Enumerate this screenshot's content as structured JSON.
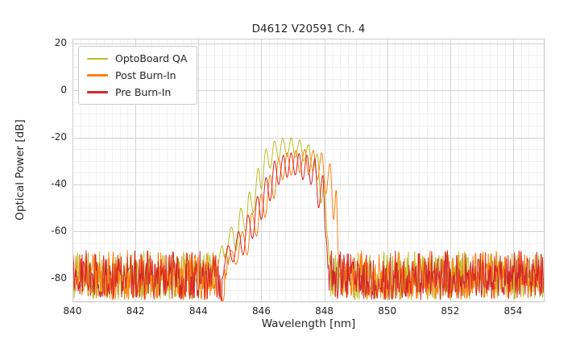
{
  "chart_data": {
    "type": "line",
    "title": "D4612 V20591 Ch. 4",
    "xlabel": "Wavelength [nm]",
    "ylabel": "Optical Power [dB]",
    "xlim": [
      840,
      855
    ],
    "ylim": [
      -90,
      22
    ],
    "xticks": [
      840,
      842,
      844,
      846,
      848,
      850,
      852,
      854
    ],
    "yticks": [
      20,
      0,
      -20,
      -40,
      -60,
      -80
    ],
    "grid": {
      "minor_x_step": 0.25,
      "minor_y_step": 5,
      "minor_color": "#ececec",
      "major_color": "#d2d2d2",
      "box_color": "#cccccc"
    },
    "text_color": "#262626",
    "legend_position": "upper-left",
    "noise_floor": {
      "top_dB": -68,
      "bottom_dB": -89,
      "notch_x": [
        844.7,
        844.82
      ]
    },
    "series": [
      {
        "name": "OptoBoard QA",
        "color": "#bcbd22",
        "envelope": [
          [
            844.55,
            -80
          ],
          [
            844.75,
            -66
          ],
          [
            844.85,
            -72
          ],
          [
            845.05,
            -58
          ],
          [
            845.2,
            -68
          ],
          [
            845.35,
            -50
          ],
          [
            845.5,
            -60
          ],
          [
            845.62,
            -43
          ],
          [
            845.75,
            -52
          ],
          [
            845.9,
            -33
          ],
          [
            846.0,
            -42
          ],
          [
            846.15,
            -25
          ],
          [
            846.28,
            -33
          ],
          [
            846.42,
            -21.5
          ],
          [
            846.55,
            -29
          ],
          [
            846.68,
            -20.3
          ],
          [
            846.82,
            -28
          ],
          [
            846.95,
            -20.2
          ],
          [
            847.08,
            -28.5
          ],
          [
            847.22,
            -21
          ],
          [
            847.35,
            -30
          ],
          [
            847.5,
            -23
          ],
          [
            847.62,
            -34
          ],
          [
            847.78,
            -27
          ],
          [
            847.9,
            -48
          ],
          [
            848.0,
            -38
          ],
          [
            848.1,
            -62
          ],
          [
            848.2,
            -80
          ]
        ]
      },
      {
        "name": "Post Burn-In",
        "color": "#ff7f0e",
        "envelope": [
          [
            844.85,
            -80
          ],
          [
            845.05,
            -68
          ],
          [
            845.2,
            -74
          ],
          [
            845.4,
            -60
          ],
          [
            845.55,
            -70
          ],
          [
            845.7,
            -52
          ],
          [
            845.85,
            -62
          ],
          [
            846.0,
            -44
          ],
          [
            846.12,
            -54
          ],
          [
            846.28,
            -36
          ],
          [
            846.4,
            -46
          ],
          [
            846.55,
            -29
          ],
          [
            846.68,
            -38
          ],
          [
            846.82,
            -26.5
          ],
          [
            846.95,
            -36
          ],
          [
            847.1,
            -25.5
          ],
          [
            847.22,
            -35
          ],
          [
            847.38,
            -25
          ],
          [
            847.5,
            -36
          ],
          [
            847.65,
            -25.5
          ],
          [
            847.78,
            -38
          ],
          [
            847.92,
            -26.5
          ],
          [
            848.05,
            -44
          ],
          [
            848.18,
            -31
          ],
          [
            848.3,
            -55
          ],
          [
            848.38,
            -42
          ],
          [
            848.45,
            -70
          ],
          [
            848.55,
            -82
          ]
        ]
      },
      {
        "name": "Pre Burn-In",
        "color": "#d62728",
        "envelope": [
          [
            844.75,
            -80
          ],
          [
            844.95,
            -66
          ],
          [
            845.1,
            -73
          ],
          [
            845.28,
            -60
          ],
          [
            845.42,
            -70
          ],
          [
            845.58,
            -53
          ],
          [
            845.72,
            -63
          ],
          [
            845.88,
            -45
          ],
          [
            846.0,
            -55
          ],
          [
            846.15,
            -37
          ],
          [
            846.28,
            -47
          ],
          [
            846.42,
            -30
          ],
          [
            846.55,
            -40
          ],
          [
            846.7,
            -27.5
          ],
          [
            846.82,
            -37
          ],
          [
            846.95,
            -26.5
          ],
          [
            847.08,
            -36
          ],
          [
            847.2,
            -26.8
          ],
          [
            847.32,
            -38
          ],
          [
            847.45,
            -27.5
          ],
          [
            847.58,
            -40
          ],
          [
            847.7,
            -29
          ],
          [
            847.82,
            -50
          ],
          [
            847.95,
            -36
          ],
          [
            848.05,
            -62
          ],
          [
            848.15,
            -80
          ]
        ]
      }
    ]
  }
}
